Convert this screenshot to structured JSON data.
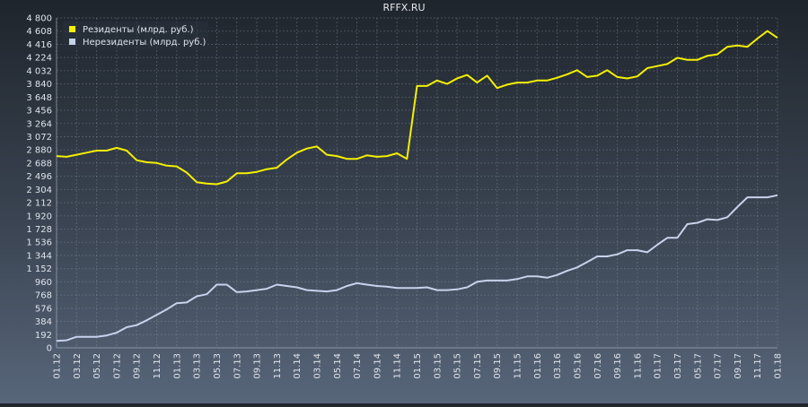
{
  "chart_data": {
    "type": "line",
    "title": "RFFX.RU",
    "xlabel": "",
    "ylabel": "",
    "ylim": [
      0,
      4800
    ],
    "grid": true,
    "legend_position": "top-left",
    "y_ticks": [
      "0",
      "192",
      "384",
      "576",
      "768",
      "960",
      "1 152",
      "1 344",
      "1 536",
      "1 728",
      "1 920",
      "2 112",
      "2 304",
      "2 496",
      "2 688",
      "2 880",
      "3 072",
      "3 264",
      "3 456",
      "3 648",
      "3 840",
      "4 032",
      "4 224",
      "4 416",
      "4 608",
      "4 800"
    ],
    "categories": [
      "01.12",
      "02.12",
      "03.12",
      "04.12",
      "05.12",
      "06.12",
      "07.12",
      "08.12",
      "09.12",
      "10.12",
      "11.12",
      "12.12",
      "01.13",
      "02.13",
      "03.13",
      "04.13",
      "05.13",
      "06.13",
      "07.13",
      "08.13",
      "09.13",
      "10.13",
      "11.13",
      "12.13",
      "01.14",
      "02.14",
      "03.14",
      "04.14",
      "05.14",
      "06.14",
      "07.14",
      "08.14",
      "09.14",
      "10.14",
      "11.14",
      "12.14",
      "01.15",
      "02.15",
      "03.15",
      "04.15",
      "05.15",
      "06.15",
      "07.15",
      "08.15",
      "09.15",
      "10.15",
      "11.15",
      "12.15",
      "01.16",
      "02.16",
      "03.16",
      "04.16",
      "05.16",
      "06.16",
      "07.16",
      "08.16",
      "09.16",
      "10.16",
      "11.16",
      "12.16",
      "01.17",
      "02.17",
      "03.17",
      "04.17",
      "05.17",
      "06.17",
      "07.17",
      "08.17",
      "09.17",
      "10.17",
      "11.17",
      "12.17",
      "01.18"
    ],
    "x_tick_labels": [
      "01.12",
      "03.12",
      "05.12",
      "07.12",
      "09.12",
      "11.12",
      "01.13",
      "03.13",
      "05.13",
      "07.13",
      "09.13",
      "11.13",
      "01.14",
      "03.14",
      "05.14",
      "07.14",
      "09.14",
      "11.14",
      "01.15",
      "03.15",
      "05.15",
      "07.15",
      "09.15",
      "11.15",
      "01.16",
      "03.16",
      "05.16",
      "07.16",
      "09.16",
      "11.16",
      "01.17",
      "03.17",
      "05.17",
      "07.17",
      "09.17",
      "11.17",
      "01.18"
    ],
    "series": [
      {
        "name": "Резиденты (млрд. руб.)",
        "color": "#f4f000",
        "values": [
          2790,
          2780,
          2810,
          2840,
          2870,
          2870,
          2910,
          2870,
          2730,
          2700,
          2690,
          2650,
          2640,
          2550,
          2410,
          2390,
          2380,
          2420,
          2540,
          2540,
          2560,
          2600,
          2620,
          2740,
          2840,
          2900,
          2930,
          2810,
          2790,
          2750,
          2750,
          2800,
          2780,
          2790,
          2830,
          2750,
          3810,
          3810,
          3890,
          3840,
          3920,
          3970,
          3860,
          3960,
          3780,
          3830,
          3860,
          3860,
          3890,
          3890,
          3930,
          3980,
          4040,
          3940,
          3960,
          4040,
          3940,
          3920,
          3950,
          4070,
          4100,
          4130,
          4220,
          4190,
          4190,
          4250,
          4270,
          4380,
          4400,
          4380,
          4500,
          4610,
          4510
        ]
      },
      {
        "name": "Нерезиденты (млрд. руб.)",
        "color": "#c8d2ec",
        "values": [
          100,
          110,
          160,
          160,
          160,
          180,
          220,
          300,
          330,
          400,
          480,
          560,
          650,
          660,
          750,
          780,
          920,
          920,
          810,
          820,
          840,
          860,
          920,
          900,
          880,
          840,
          830,
          820,
          840,
          900,
          940,
          920,
          900,
          890,
          870,
          870,
          870,
          880,
          840,
          840,
          850,
          880,
          960,
          980,
          980,
          980,
          1000,
          1040,
          1040,
          1020,
          1060,
          1120,
          1170,
          1250,
          1330,
          1330,
          1360,
          1420,
          1420,
          1390,
          1500,
          1600,
          1600,
          1800,
          1820,
          1870,
          1860,
          1900,
          2050,
          2190,
          2190,
          2190,
          2220
        ]
      }
    ]
  }
}
